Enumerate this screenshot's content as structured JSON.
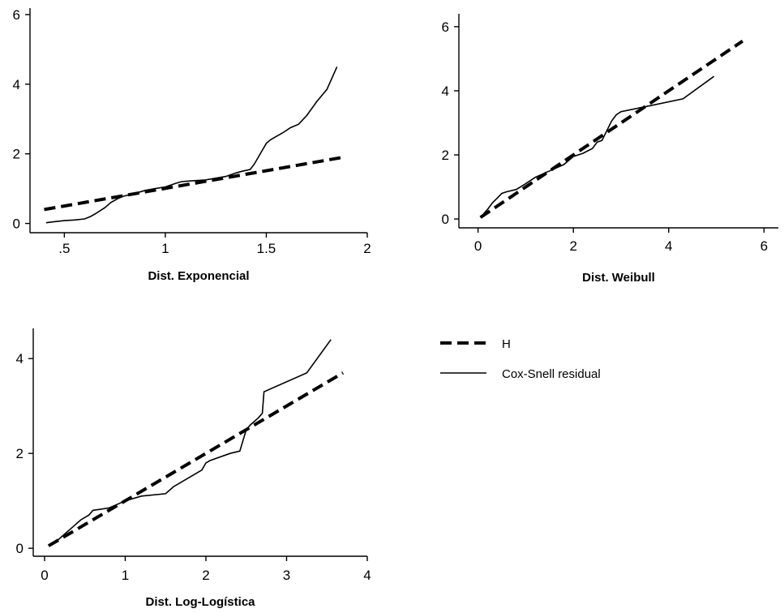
{
  "legend": {
    "entries": [
      {
        "label": "H",
        "style": "dashed-thick"
      },
      {
        "label": "Cox-Snell residual",
        "style": "solid-thin"
      }
    ]
  },
  "chart_data": [
    {
      "type": "line",
      "xlabel": "Dist. Exponencial",
      "ylabel": "",
      "xlim": [
        0.35,
        2.0
      ],
      "ylim": [
        -0.15,
        6.0
      ],
      "xticks": [
        {
          "v": 0.5,
          "label": ".5"
        },
        {
          "v": 1,
          "label": "1"
        },
        {
          "v": 1.5,
          "label": "1.5"
        },
        {
          "v": 2,
          "label": "2"
        }
      ],
      "yticks": [
        {
          "v": 0,
          "label": "0"
        },
        {
          "v": 2,
          "label": "2"
        },
        {
          "v": 4,
          "label": "4"
        },
        {
          "v": 6,
          "label": "6"
        }
      ],
      "series": [
        {
          "name": "H",
          "style": "dashed",
          "x": [
            0.4,
            1.88
          ],
          "y": [
            0.4,
            1.9
          ]
        },
        {
          "name": "Cox-Snell residual",
          "style": "solid",
          "x": [
            0.41,
            0.45,
            0.5,
            0.55,
            0.6,
            0.63,
            0.66,
            0.7,
            0.73,
            0.76,
            0.79,
            0.82,
            0.86,
            0.9,
            0.95,
            1.0,
            1.05,
            1.08,
            1.12,
            1.2,
            1.3,
            1.35,
            1.38,
            1.42,
            1.44,
            1.46,
            1.48,
            1.5,
            1.52,
            1.55,
            1.58,
            1.62,
            1.66,
            1.7,
            1.75,
            1.8,
            1.85
          ],
          "y": [
            0.02,
            0.05,
            0.08,
            0.1,
            0.13,
            0.2,
            0.3,
            0.45,
            0.6,
            0.7,
            0.78,
            0.82,
            0.88,
            0.95,
            1.0,
            1.05,
            1.15,
            1.2,
            1.22,
            1.25,
            1.35,
            1.45,
            1.5,
            1.55,
            1.7,
            1.9,
            2.1,
            2.3,
            2.4,
            2.5,
            2.6,
            2.75,
            2.85,
            3.1,
            3.5,
            3.85,
            4.5
          ]
        }
      ]
    },
    {
      "type": "line",
      "xlabel": "Dist. Weibull",
      "ylabel": "",
      "xlim": [
        -0.3,
        6.3
      ],
      "ylim": [
        -0.2,
        6.2
      ],
      "xticks": [
        {
          "v": 0,
          "label": "0"
        },
        {
          "v": 2,
          "label": "2"
        },
        {
          "v": 4,
          "label": "4"
        },
        {
          "v": 6,
          "label": "6"
        }
      ],
      "yticks": [
        {
          "v": 0,
          "label": "0"
        },
        {
          "v": 2,
          "label": "2"
        },
        {
          "v": 4,
          "label": "4"
        },
        {
          "v": 6,
          "label": "6"
        }
      ],
      "series": [
        {
          "name": "H",
          "style": "dashed",
          "x": [
            0.05,
            5.55
          ],
          "y": [
            0.05,
            5.55
          ]
        },
        {
          "name": "Cox-Snell residual",
          "style": "solid",
          "x": [
            0.05,
            0.2,
            0.3,
            0.4,
            0.5,
            0.6,
            0.8,
            1.0,
            1.2,
            1.5,
            1.8,
            2.0,
            2.2,
            2.4,
            2.5,
            2.6,
            2.65,
            2.7,
            2.8,
            2.9,
            3.0,
            3.5,
            4.3,
            4.95
          ],
          "y": [
            0.05,
            0.3,
            0.5,
            0.65,
            0.8,
            0.85,
            0.92,
            1.1,
            1.3,
            1.5,
            1.7,
            1.95,
            2.05,
            2.2,
            2.4,
            2.45,
            2.6,
            2.75,
            3.05,
            3.25,
            3.35,
            3.5,
            3.75,
            4.45
          ]
        }
      ]
    },
    {
      "type": "line",
      "xlabel": "Dist. Log-Logística",
      "ylabel": "",
      "xlim": [
        -0.1,
        4.0
      ],
      "ylim": [
        -0.1,
        4.5
      ],
      "xticks": [
        {
          "v": 0,
          "label": "0"
        },
        {
          "v": 1,
          "label": "1"
        },
        {
          "v": 2,
          "label": "2"
        },
        {
          "v": 3,
          "label": "3"
        },
        {
          "v": 4,
          "label": "4"
        }
      ],
      "yticks": [
        {
          "v": 0,
          "label": "0"
        },
        {
          "v": 2,
          "label": "2"
        },
        {
          "v": 4,
          "label": "4"
        }
      ],
      "series": [
        {
          "name": "H",
          "style": "dashed",
          "x": [
            0.05,
            3.7
          ],
          "y": [
            0.05,
            3.7
          ]
        },
        {
          "name": "Cox-Snell residual",
          "style": "solid",
          "x": [
            0.05,
            0.15,
            0.25,
            0.35,
            0.45,
            0.55,
            0.6,
            0.8,
            1.0,
            1.2,
            1.5,
            1.6,
            1.7,
            1.8,
            1.95,
            2.0,
            2.05,
            2.3,
            2.42,
            2.5,
            2.55,
            2.65,
            2.7,
            2.72,
            3.25,
            3.55
          ],
          "y": [
            0.05,
            0.15,
            0.3,
            0.45,
            0.6,
            0.7,
            0.8,
            0.85,
            1.0,
            1.1,
            1.15,
            1.3,
            1.4,
            1.5,
            1.65,
            1.8,
            1.85,
            2.0,
            2.05,
            2.5,
            2.6,
            2.75,
            2.85,
            3.3,
            3.7,
            4.4
          ]
        }
      ]
    }
  ]
}
